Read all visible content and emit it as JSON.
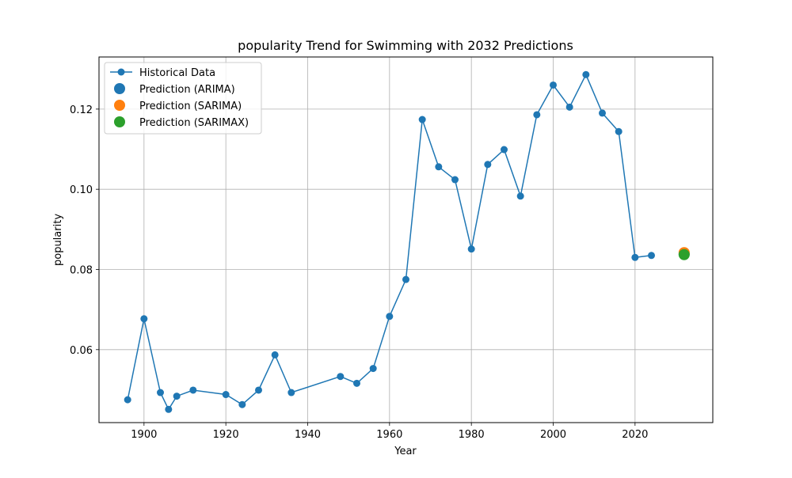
{
  "chart_data": {
    "type": "line",
    "title": "popularity Trend for Swimming with 2032 Predictions",
    "xlabel": "Year",
    "ylabel": "popularity",
    "xlim": [
      1889,
      2039
    ],
    "ylim": [
      0.0418,
      0.133
    ],
    "xticks": [
      1900,
      1920,
      1940,
      1960,
      1980,
      2000,
      2020
    ],
    "yticks": [
      0.06,
      0.08,
      0.1,
      0.12
    ],
    "ytick_labels": [
      "0.06",
      "0.08",
      "0.10",
      "0.12"
    ],
    "grid": true,
    "legend_position": "top-left",
    "series": [
      {
        "name": "Historical Data",
        "color": "#1f77b4",
        "marker": "circle",
        "x": [
          1896,
          1900,
          1904,
          1906,
          1908,
          1912,
          1920,
          1924,
          1928,
          1932,
          1936,
          1948,
          1952,
          1956,
          1960,
          1964,
          1968,
          1972,
          1976,
          1980,
          1984,
          1988,
          1992,
          1996,
          2000,
          2004,
          2008,
          2012,
          2016,
          2020,
          2024
        ],
        "y": [
          0.0475,
          0.0677,
          0.0493,
          0.0451,
          0.0484,
          0.0499,
          0.0488,
          0.0463,
          0.0499,
          0.0587,
          0.0493,
          0.0533,
          0.0516,
          0.0553,
          0.0683,
          0.0775,
          0.1174,
          0.1056,
          0.1024,
          0.0851,
          0.1062,
          0.1099,
          0.0983,
          0.1186,
          0.126,
          0.1205,
          0.1286,
          0.119,
          0.1144,
          0.083,
          0.0835
        ]
      },
      {
        "name": "Prediction (ARIMA)",
        "color": "#1f77b4",
        "marker": "circle-large",
        "x": [
          2032
        ],
        "y": [
          0.0838
        ]
      },
      {
        "name": "Prediction (SARIMA)",
        "color": "#ff7f0e",
        "marker": "circle-large",
        "x": [
          2032
        ],
        "y": [
          0.0842
        ]
      },
      {
        "name": "Prediction (SARIMAX)",
        "color": "#2ca02c",
        "marker": "circle-large",
        "x": [
          2032
        ],
        "y": [
          0.0837
        ]
      }
    ]
  }
}
